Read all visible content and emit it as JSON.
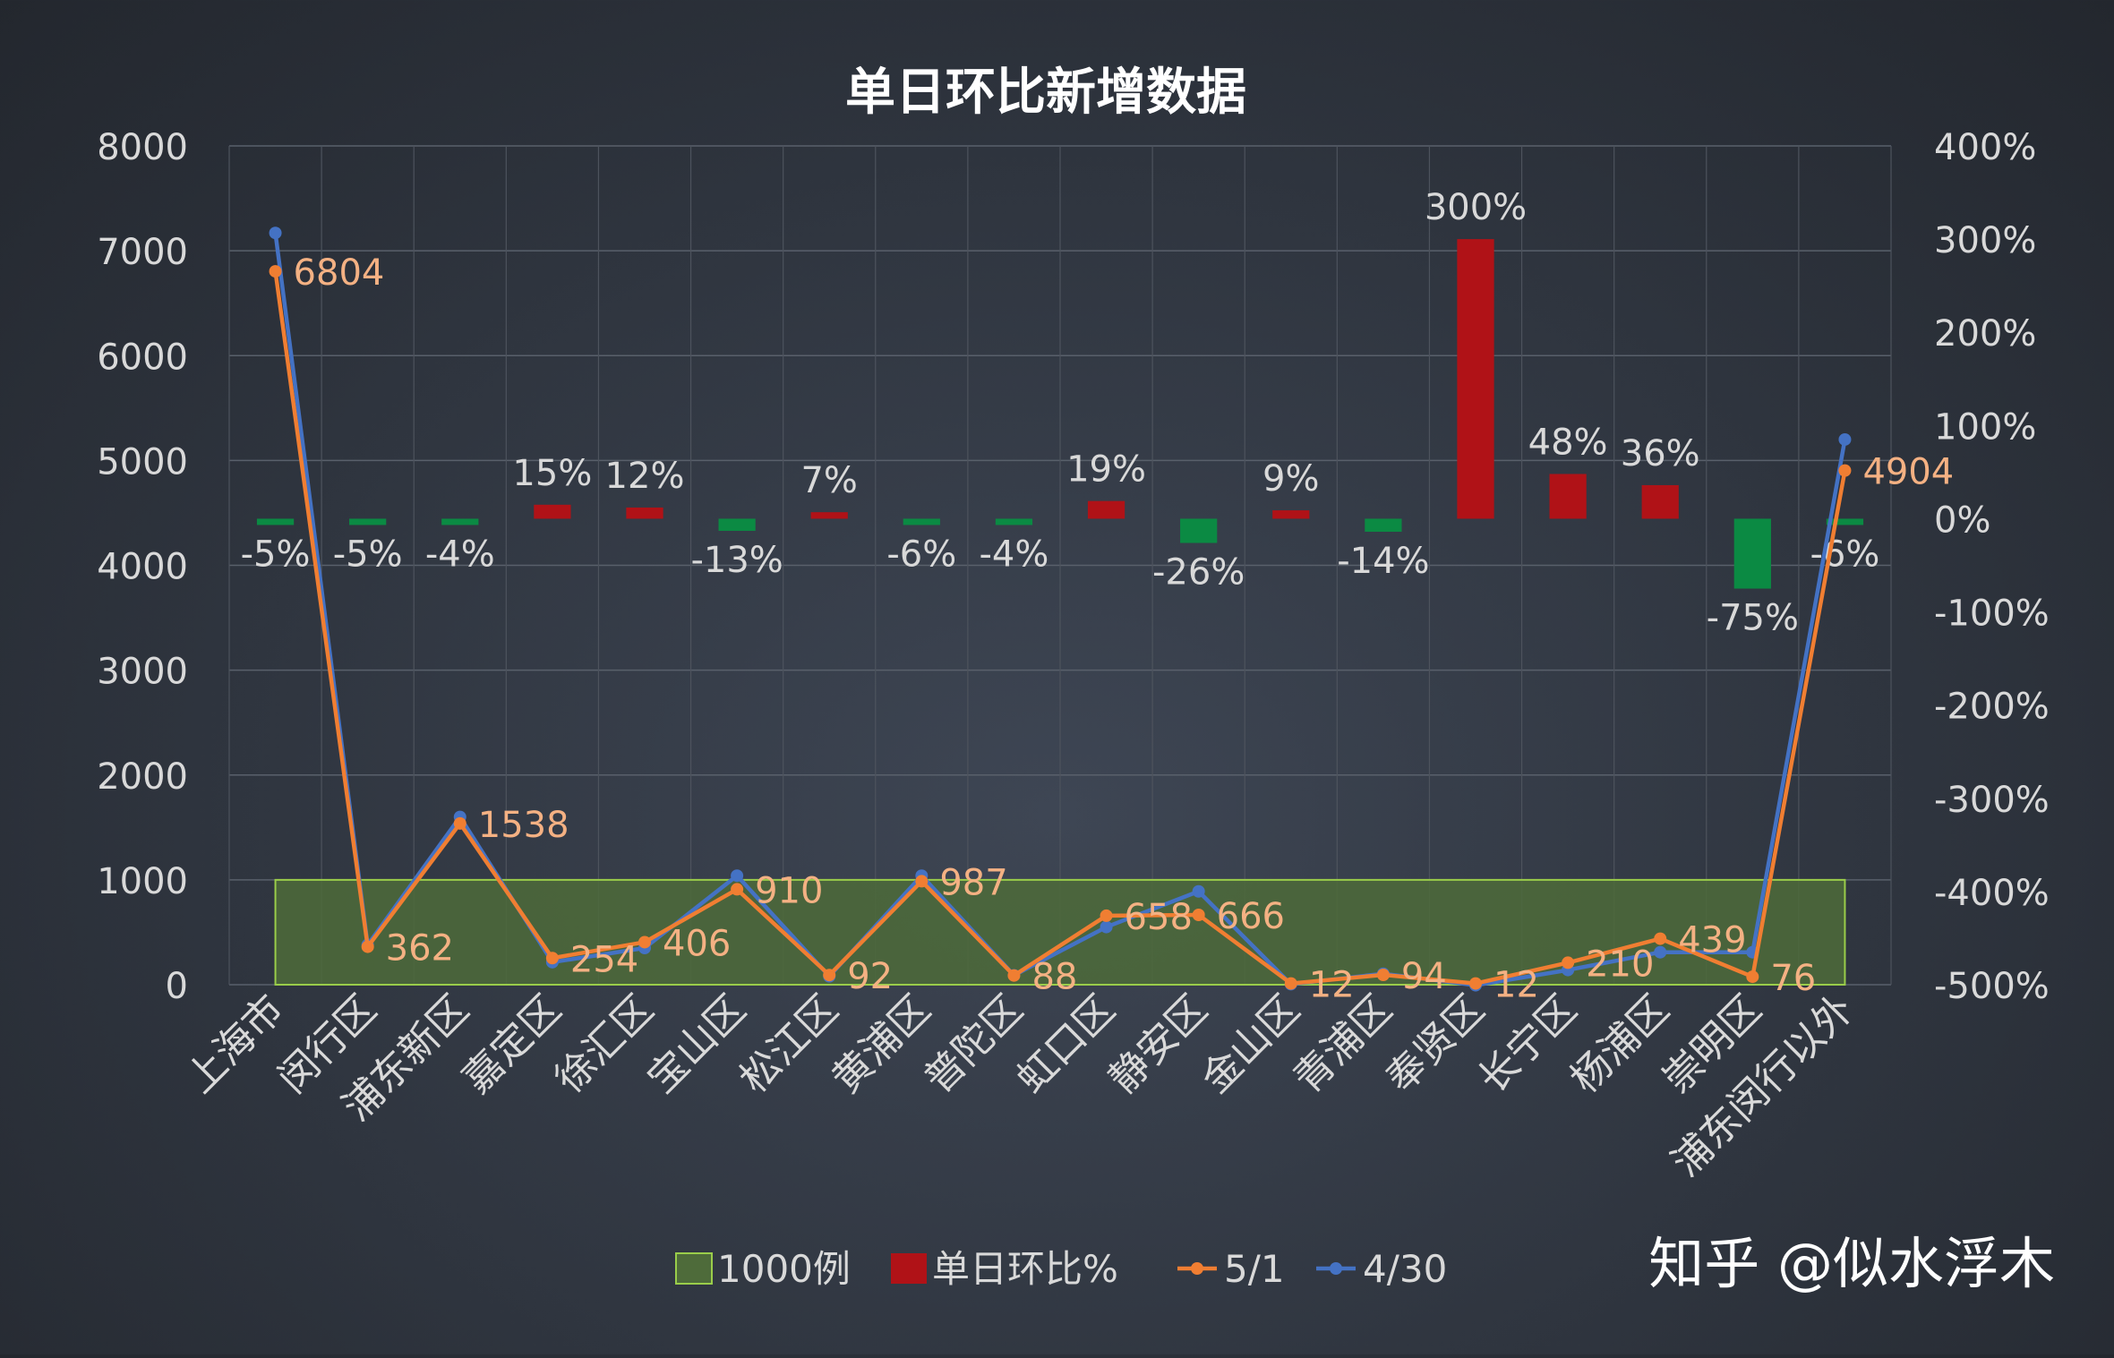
{
  "chart_data": {
    "type": "bar+line",
    "title": "单日环比新增数据",
    "categories": [
      "上海市",
      "闵行区",
      "浦东新区",
      "嘉定区",
      "徐汇区",
      "宝山区",
      "松江区",
      "黄浦区",
      "普陀区",
      "虹口区",
      "静安区",
      "金山区",
      "青浦区",
      "奉贤区",
      "长宁区",
      "杨浦区",
      "崇明区",
      "浦东闵行以外"
    ],
    "y_left": {
      "min": 0,
      "max": 8000,
      "step": 1000,
      "ticks": [
        "0",
        "1000",
        "2000",
        "3000",
        "4000",
        "5000",
        "6000",
        "7000",
        "8000"
      ]
    },
    "y_right": {
      "min": -500,
      "max": 400,
      "step": 100,
      "ticks": [
        "-500%",
        "-400%",
        "-300%",
        "-200%",
        "-100%",
        "0%",
        "100%",
        "200%",
        "300%",
        "400%"
      ]
    },
    "series": [
      {
        "name": "1000例",
        "type": "area",
        "axis": "left",
        "value": 1000,
        "color": "#4e6b3a",
        "stroke": "#9acd4a"
      },
      {
        "name": "单日环比%",
        "type": "bar",
        "axis": "right",
        "pos_color": "#b01217",
        "neg_color": "#0b8a43",
        "values": [
          -5,
          -5,
          -4,
          15,
          12,
          -13,
          7,
          -6,
          -4,
          19,
          -26,
          9,
          -14,
          300,
          48,
          36,
          -75,
          -6
        ],
        "labels": [
          "-5%",
          "-5%",
          "-4%",
          "15%",
          "12%",
          "-13%",
          "7%",
          "-6%",
          "-4%",
          "19%",
          "-26%",
          "9%",
          "-14%",
          "300%",
          "48%",
          "36%",
          "-75%",
          "-6%"
        ]
      },
      {
        "name": "5/1",
        "type": "line",
        "axis": "left",
        "color": "#f07e32",
        "label_color": "#f4b183",
        "values": [
          6804,
          362,
          1538,
          254,
          406,
          910,
          92,
          987,
          88,
          658,
          666,
          12,
          94,
          12,
          210,
          439,
          76,
          4904
        ],
        "labels": [
          "6804",
          "362",
          "1538",
          "254",
          "406",
          "910",
          "92",
          "987",
          "88",
          "658",
          "666",
          "12",
          "94",
          "12",
          "210",
          "439",
          "76",
          "4904"
        ]
      },
      {
        "name": "4/30",
        "type": "line",
        "axis": "left",
        "color": "#4472c4",
        "values": [
          7170,
          380,
          1600,
          215,
          350,
          1040,
          80,
          1040,
          90,
          550,
          890,
          5,
          105,
          -5,
          140,
          310,
          310,
          5200
        ]
      }
    ],
    "grid": true,
    "legend": "bottom"
  },
  "watermark": "知乎 @似水浮木"
}
